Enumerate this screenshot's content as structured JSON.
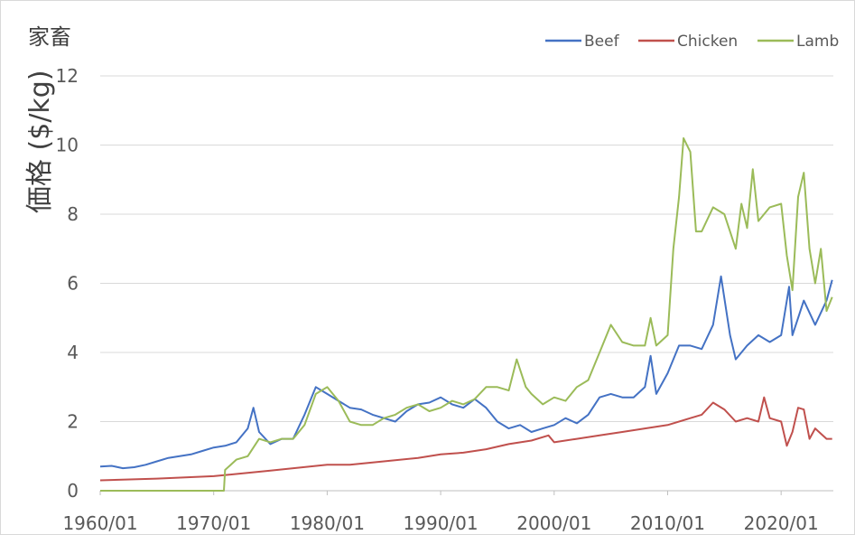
{
  "chart_data": {
    "type": "line",
    "title": "家畜",
    "ylabel": "価格 ($/kg)",
    "xlabel": "",
    "ylim": [
      0,
      12
    ],
    "yticks": [
      "0",
      "2",
      "4",
      "6",
      "8",
      "10",
      "12"
    ],
    "xticks": [
      "1960/01",
      "1970/01",
      "1980/01",
      "1990/01",
      "2000/01",
      "2010/01",
      "2020/01"
    ],
    "xrange": [
      1960.0,
      2024.6
    ],
    "grid": true,
    "legend_position": "top-right",
    "series": [
      {
        "name": "Beef",
        "color": "#4472C4",
        "x": [
          1960,
          1961,
          1962,
          1963,
          1964,
          1965,
          1966,
          1967,
          1968,
          1969,
          1970,
          1971,
          1972,
          1973,
          1973.5,
          1974,
          1975,
          1976,
          1977,
          1978,
          1979,
          1980,
          1981,
          1982,
          1983,
          1984,
          1985,
          1986,
          1987,
          1988,
          1989,
          1990,
          1991,
          1992,
          1993,
          1994,
          1995,
          1996,
          1997,
          1998,
          1999,
          2000,
          2001,
          2002,
          2003,
          2004,
          2005,
          2006,
          2007,
          2008,
          2008.5,
          2009,
          2010,
          2011,
          2012,
          2013,
          2014,
          2014.7,
          2015.5,
          2016,
          2017,
          2018,
          2019,
          2020,
          2020.7,
          2021,
          2022,
          2023,
          2024,
          2024.5
        ],
        "y": [
          0.7,
          0.72,
          0.65,
          0.68,
          0.75,
          0.85,
          0.95,
          1.0,
          1.05,
          1.15,
          1.25,
          1.3,
          1.4,
          1.8,
          2.4,
          1.7,
          1.35,
          1.5,
          1.5,
          2.2,
          3.0,
          2.8,
          2.6,
          2.4,
          2.35,
          2.2,
          2.1,
          2.0,
          2.3,
          2.5,
          2.55,
          2.7,
          2.5,
          2.4,
          2.65,
          2.4,
          2.0,
          1.8,
          1.9,
          1.7,
          1.8,
          1.9,
          2.1,
          1.95,
          2.2,
          2.7,
          2.8,
          2.7,
          2.7,
          3.0,
          3.9,
          2.8,
          3.4,
          4.2,
          4.2,
          4.1,
          4.8,
          6.2,
          4.5,
          3.8,
          4.2,
          4.5,
          4.3,
          4.5,
          5.9,
          4.5,
          5.5,
          4.8,
          5.5,
          6.1
        ]
      },
      {
        "name": "Chicken",
        "color": "#C0504D",
        "x": [
          1960,
          1965,
          1970,
          1975,
          1980,
          1982,
          1985,
          1988,
          1990,
          1992,
          1994,
          1996,
          1998,
          1999.5,
          2000,
          2002,
          2004,
          2006,
          2008,
          2010,
          2012,
          2013,
          2014,
          2015,
          2016,
          2017,
          2018,
          2018.5,
          2019,
          2020,
          2020.5,
          2021,
          2021.5,
          2022,
          2022.5,
          2023,
          2024,
          2024.5
        ],
        "y": [
          0.3,
          0.35,
          0.42,
          0.58,
          0.75,
          0.75,
          0.85,
          0.95,
          1.05,
          1.1,
          1.2,
          1.35,
          1.45,
          1.6,
          1.4,
          1.5,
          1.6,
          1.7,
          1.8,
          1.9,
          2.1,
          2.2,
          2.55,
          2.35,
          2.0,
          2.1,
          2.0,
          2.7,
          2.1,
          2.0,
          1.3,
          1.7,
          2.4,
          2.35,
          1.5,
          1.8,
          1.5,
          1.5
        ]
      },
      {
        "name": "Lamb",
        "color": "#9BBB59",
        "x": [
          1960,
          1970.9,
          1971.0,
          1972,
          1973,
          1974,
          1975,
          1976,
          1977,
          1978,
          1979,
          1980,
          1981,
          1982,
          1983,
          1984,
          1985,
          1986,
          1987,
          1988,
          1989,
          1990,
          1991,
          1992,
          1993,
          1994,
          1995,
          1996,
          1996.7,
          1997.5,
          1998,
          1999,
          2000,
          2001,
          2002,
          2003,
          2004,
          2005,
          2006,
          2007,
          2008,
          2008.5,
          2009,
          2010,
          2010.5,
          2011,
          2011.4,
          2012,
          2012.5,
          2013,
          2014,
          2015,
          2016,
          2016.5,
          2017,
          2017.5,
          2018,
          2019,
          2020,
          2020.5,
          2021,
          2021.5,
          2022,
          2022.5,
          2023,
          2023.5,
          2024,
          2024.5
        ],
        "y": [
          0,
          0,
          0.6,
          0.9,
          1.0,
          1.5,
          1.4,
          1.5,
          1.5,
          1.9,
          2.8,
          3.0,
          2.6,
          2.0,
          1.9,
          1.9,
          2.1,
          2.2,
          2.4,
          2.5,
          2.3,
          2.4,
          2.6,
          2.5,
          2.65,
          3.0,
          3.0,
          2.9,
          3.8,
          3.0,
          2.8,
          2.5,
          2.7,
          2.6,
          3.0,
          3.2,
          4.0,
          4.8,
          4.3,
          4.2,
          4.2,
          5.0,
          4.2,
          4.5,
          7.0,
          8.5,
          10.2,
          9.8,
          7.5,
          7.5,
          8.2,
          8.0,
          7.0,
          8.3,
          7.6,
          9.3,
          7.8,
          8.2,
          8.3,
          6.8,
          5.8,
          8.5,
          9.2,
          7.0,
          6.0,
          7.0,
          5.2,
          5.6
        ]
      }
    ]
  }
}
